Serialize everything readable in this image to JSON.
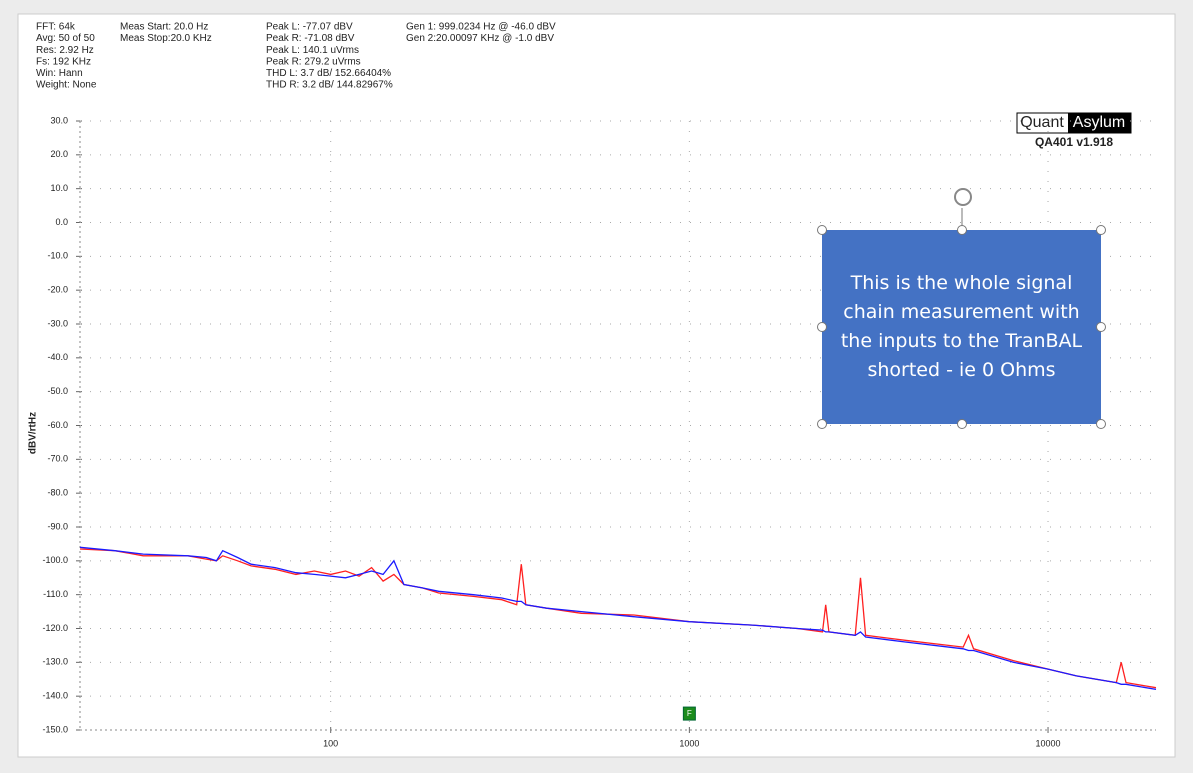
{
  "chart_data": {
    "type": "line",
    "info_columns": [
      [
        "FFT: 64k",
        "Avg: 50 of 50",
        "Res: 2.92 Hz",
        "Fs: 192 KHz",
        "Win: Hann",
        "Weight: None"
      ],
      [
        "Meas Start: 20.0 Hz",
        "Meas Stop:20.0 KHz"
      ],
      [
        "Peak L: -77.07 dBV",
        "Peak R: -71.08 dBV",
        "Peak L: 140.1 uVrms",
        "Peak R: 279.2 uVrms",
        "THD L: 3.7 dB/ 152.66404%",
        "THD R: 3.2 dB/ 144.82967%"
      ],
      [
        "Gen 1: 999.0234 Hz @ -46.0  dBV",
        "Gen 2:20.00097 KHz @ -1.0  dBV"
      ]
    ],
    "logo": [
      "Quant",
      "Asylum"
    ],
    "version": "QA401 v1.918",
    "annotation": "This is the whole signal chain measurement with the inputs to the TranBAL shorted  - ie 0 Ohms",
    "marker_label": "F",
    "ylabel": "dBV/rtHz",
    "xscale": "log",
    "grid": true,
    "xlim": [
      20,
      20000
    ],
    "xticks": [
      100,
      1000,
      10000
    ],
    "ylim": [
      -150,
      30
    ],
    "yticks": [
      {
        "value": 30,
        "label": "30.0"
      },
      {
        "value": 20,
        "label": "20.0"
      },
      {
        "value": 10,
        "label": "10.0"
      },
      {
        "value": 0,
        "label": "0.0"
      },
      {
        "value": -10,
        "label": "-10.0"
      },
      {
        "value": -20,
        "label": "-20.0"
      },
      {
        "value": -30,
        "label": "-30.0"
      },
      {
        "value": -40,
        "label": "-40.0"
      },
      {
        "value": -50,
        "label": "-50.0"
      },
      {
        "value": -60,
        "label": "-60.0"
      },
      {
        "value": -70,
        "label": "-70.0"
      },
      {
        "value": -80,
        "label": "-80.0"
      },
      {
        "value": -90,
        "label": "-90.0"
      },
      {
        "value": -100,
        "label": "-100.0"
      },
      {
        "value": -110,
        "label": "-110.0"
      },
      {
        "value": -120,
        "label": "-120.0"
      },
      {
        "value": -130,
        "label": "-130.0"
      },
      {
        "value": -140,
        "label": "-140.0"
      },
      {
        "value": -150,
        "label": "-150.0"
      }
    ],
    "x": [
      20,
      25,
      30,
      40,
      45,
      48,
      50,
      55,
      60,
      70,
      80,
      90,
      100,
      110,
      120,
      130,
      140,
      150,
      160,
      180,
      200,
      250,
      300,
      330,
      340,
      350,
      400,
      500,
      700,
      1000,
      1500,
      2000,
      2350,
      2400,
      2450,
      2900,
      3000,
      3100,
      4000,
      5800,
      6000,
      6200,
      8000,
      10000,
      12000,
      15500,
      16000,
      16500,
      20000
    ],
    "series": [
      {
        "color": "#ff2020",
        "values": [
          -96.5,
          -97,
          -98.5,
          -98.5,
          -99.5,
          -100,
          -98.5,
          -100,
          -101.5,
          -102.5,
          -104,
          -103,
          -104,
          -103,
          -104.5,
          -102,
          -106,
          -104,
          -107,
          -108,
          -109.5,
          -110.5,
          -111.5,
          -113,
          -101,
          -113,
          -114,
          -115.5,
          -116,
          -118,
          -119,
          -120,
          -121,
          -113,
          -121,
          -122,
          -105,
          -122,
          -123.5,
          -125.5,
          -122,
          -126,
          -129.5,
          -132,
          -134,
          -136,
          -130,
          -136,
          -137.5
        ]
      },
      {
        "color": "#1a1aff",
        "values": [
          -96,
          -97,
          -98,
          -98.5,
          -99,
          -100,
          -97,
          -99,
          -101,
          -102,
          -103.5,
          -104,
          -104.5,
          -105,
          -104,
          -103,
          -104,
          -100,
          -107,
          -108,
          -109,
          -110,
          -111,
          -112,
          -112,
          -113,
          -114,
          -115,
          -116.5,
          -118,
          -119,
          -120,
          -120.5,
          -121,
          -121,
          -122,
          -121,
          -122.5,
          -124,
          -126,
          -126.5,
          -126.5,
          -130,
          -132,
          -134,
          -136,
          -136.5,
          -136.5,
          -138
        ]
      }
    ]
  }
}
